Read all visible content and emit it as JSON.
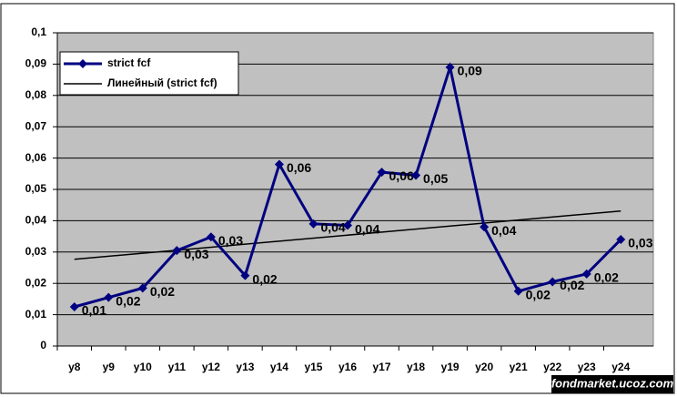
{
  "chart_data": {
    "type": "line",
    "categories": [
      "y8",
      "y9",
      "y10",
      "y11",
      "y12",
      "y13",
      "y14",
      "y15",
      "y16",
      "y17",
      "y18",
      "y19",
      "y20",
      "y21",
      "y22",
      "y23",
      "y24"
    ],
    "series": [
      {
        "name": "strict fcf",
        "color": "#000080",
        "values": [
          0.0125,
          0.0155,
          0.0185,
          0.0305,
          0.0348,
          0.0225,
          0.058,
          0.039,
          0.0385,
          0.0555,
          0.0545,
          0.089,
          0.038,
          0.0175,
          0.0205,
          0.023,
          0.034
        ],
        "value_labels": [
          "0,01",
          "0,02",
          "0,02",
          "0,03",
          "0,03",
          "0,02",
          "0,06",
          "0,04",
          "0,04",
          "0,06",
          "0,05",
          "0,09",
          "0,04",
          "0,02",
          "0,02",
          "0,02",
          "0,03"
        ]
      }
    ],
    "trendline": {
      "name": "Линейный (strict fcf)",
      "color": "#000000"
    },
    "ylim": [
      0,
      0.1
    ],
    "yticks": [
      0,
      {
        "value": 0.01,
        "label": "0,01"
      },
      {
        "value": 0.02,
        "label": "0,02"
      },
      {
        "value": 0.03,
        "label": "0,03"
      },
      {
        "value": 0.04,
        "label": "0,04"
      },
      {
        "value": 0.05,
        "label": "0,05"
      },
      {
        "value": 0.06,
        "label": "0,06"
      },
      {
        "value": 0.07,
        "label": "0,07"
      },
      {
        "value": 0.08,
        "label": "0,08"
      },
      {
        "value": 0.09,
        "label": "0,09"
      },
      {
        "value": 0.1,
        "label": "0,1"
      }
    ],
    "grid": true,
    "legend": "top-left",
    "watermark": "fondmarket.ucoz.com"
  }
}
